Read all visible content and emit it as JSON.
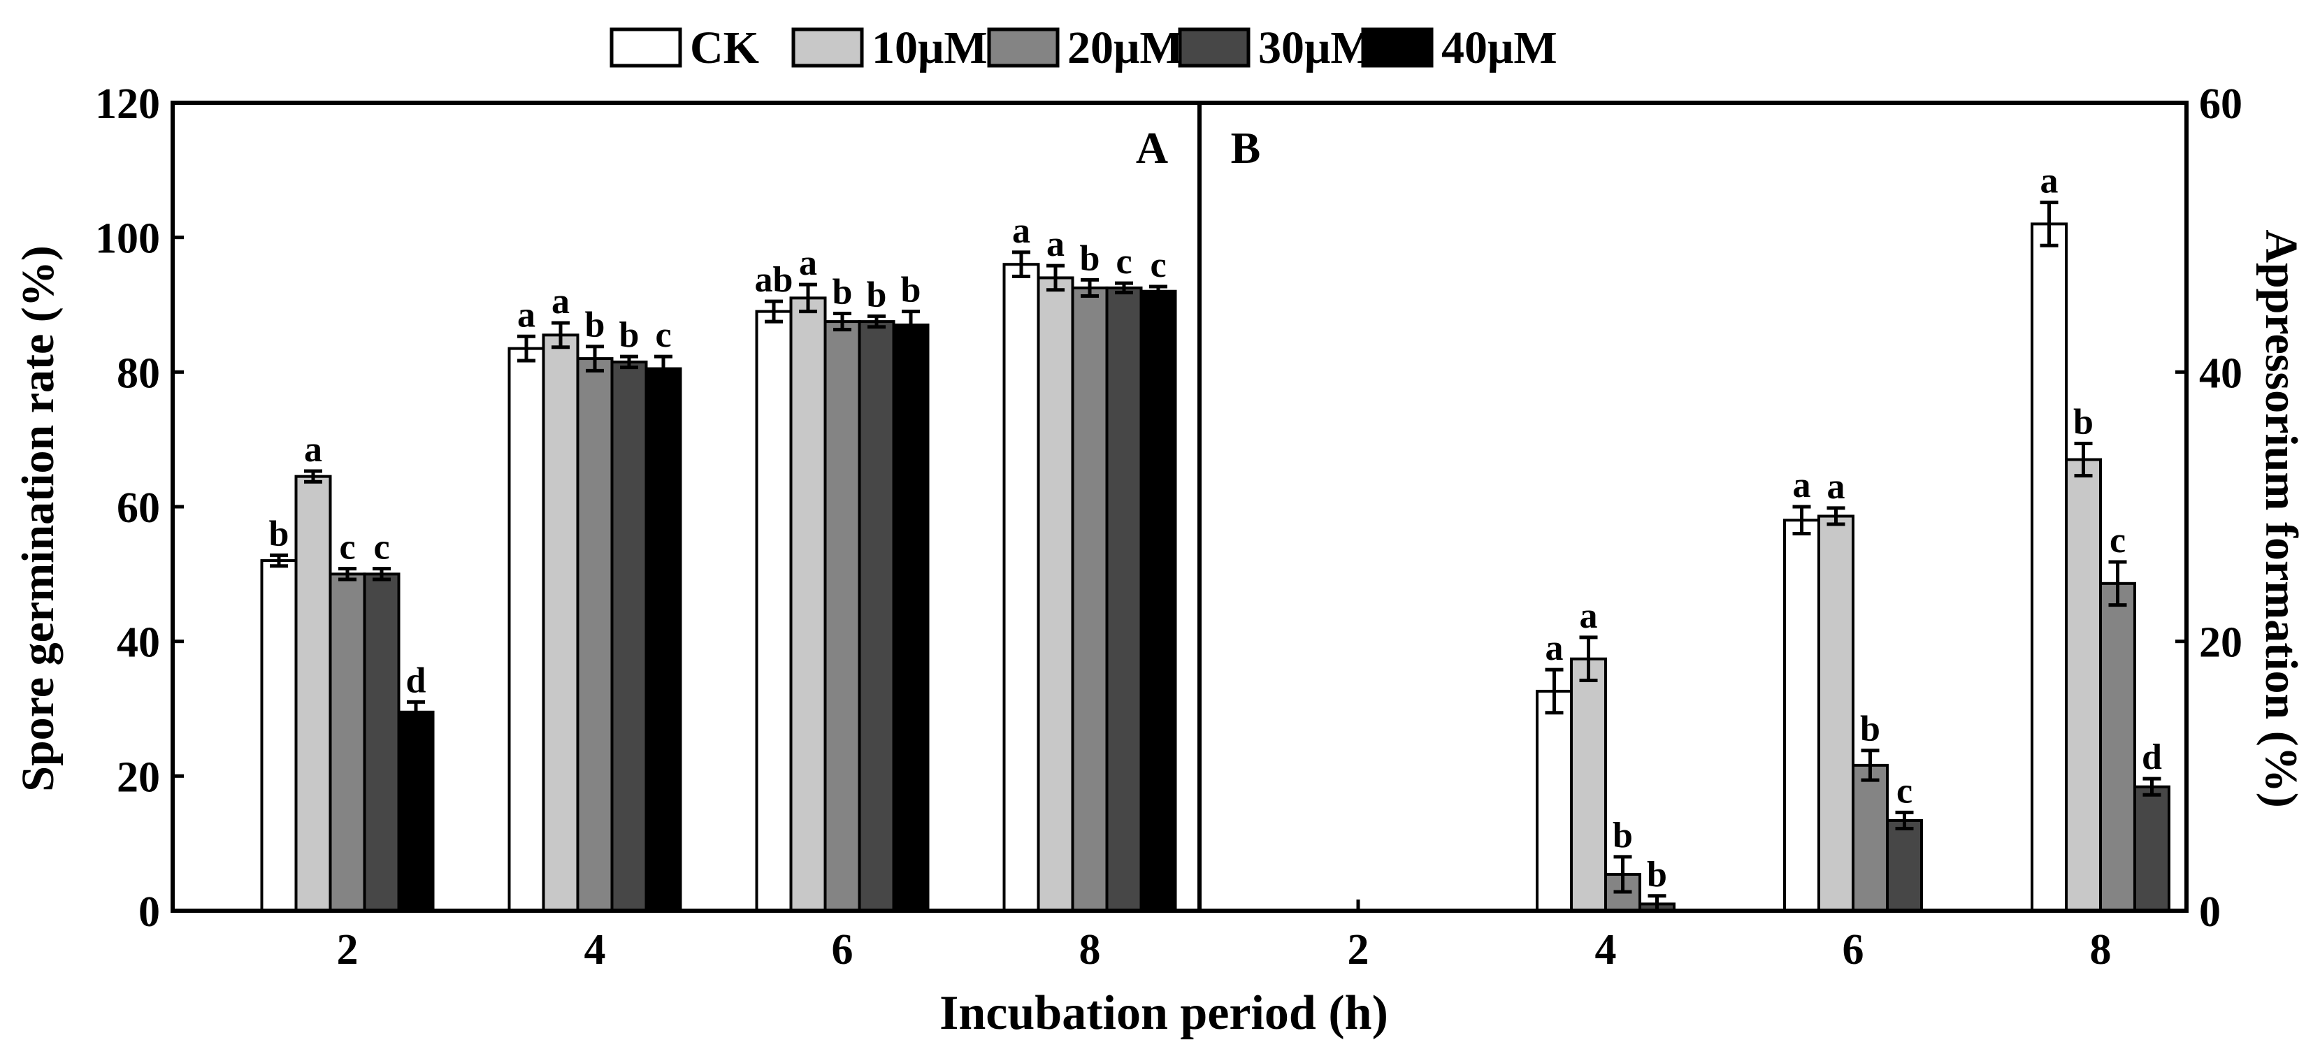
{
  "legend": {
    "entries": [
      {
        "label": "CK",
        "color": "#ffffff"
      },
      {
        "label": "10μM",
        "color": "#c8c8c8"
      },
      {
        "label": "20μM",
        "color": "#848484"
      },
      {
        "label": "30μM",
        "color": "#474747"
      },
      {
        "label": "40μM",
        "color": "#000000"
      }
    ]
  },
  "xlabel": "Incubation period (h)",
  "chart_data": [
    {
      "type": "bar",
      "panel": "A",
      "ylabel": "Spore germination rate (%)",
      "ylim": [
        0,
        120
      ],
      "yticks": [
        0,
        20,
        40,
        60,
        80,
        100,
        120
      ],
      "categories": [
        "2",
        "4",
        "6",
        "8"
      ],
      "series": [
        {
          "name": "CK",
          "values": [
            52.0,
            83.5,
            89.0,
            96.0
          ],
          "errors": [
            0.8,
            1.8,
            1.5,
            1.8
          ],
          "letters": [
            "b",
            "a",
            "ab",
            "a"
          ]
        },
        {
          "name": "10μM",
          "values": [
            64.5,
            85.5,
            91.0,
            94.0
          ],
          "errors": [
            0.8,
            1.8,
            2.0,
            1.8
          ],
          "letters": [
            "a",
            "a",
            "a",
            "a"
          ]
        },
        {
          "name": "20μM",
          "values": [
            50.0,
            82.0,
            87.5,
            92.5
          ],
          "errors": [
            0.8,
            1.8,
            1.2,
            1.2
          ],
          "letters": [
            "c",
            "b",
            "b",
            "b"
          ]
        },
        {
          "name": "30μM",
          "values": [
            50.0,
            81.5,
            87.5,
            92.5
          ],
          "errors": [
            0.8,
            0.8,
            0.8,
            0.7
          ],
          "letters": [
            "c",
            "b",
            "b",
            "c"
          ]
        },
        {
          "name": "40μM",
          "values": [
            29.5,
            80.5,
            87.0,
            92.0
          ],
          "errors": [
            1.5,
            1.8,
            2.0,
            0.7
          ],
          "letters": [
            "d",
            "c",
            "b",
            "c"
          ]
        }
      ]
    },
    {
      "type": "bar",
      "panel": "B",
      "ylabel": "Appressorium formation (%)",
      "ylim": [
        0,
        60
      ],
      "yticks": [
        0,
        20,
        40,
        60
      ],
      "categories": [
        "2",
        "4",
        "6",
        "8"
      ],
      "series": [
        {
          "name": "CK",
          "values": [
            0,
            16.3,
            29.0,
            51.0
          ],
          "errors": [
            0,
            1.6,
            1.0,
            1.6
          ],
          "letters": [
            "",
            "a",
            "a",
            "a"
          ]
        },
        {
          "name": "10μM",
          "values": [
            0,
            18.7,
            29.3,
            33.5
          ],
          "errors": [
            0,
            1.6,
            0.6,
            1.2
          ],
          "letters": [
            "",
            "a",
            "a",
            "b"
          ]
        },
        {
          "name": "20μM",
          "values": [
            0,
            2.7,
            10.8,
            24.3
          ],
          "errors": [
            0,
            1.3,
            1.1,
            1.6
          ],
          "letters": [
            "",
            "b",
            "b",
            "c"
          ]
        },
        {
          "name": "30μM",
          "values": [
            0,
            0.5,
            6.7,
            9.2
          ],
          "errors": [
            0,
            0.6,
            0.6,
            0.6
          ],
          "letters": [
            "",
            "b",
            "c",
            "d"
          ]
        }
      ]
    }
  ]
}
